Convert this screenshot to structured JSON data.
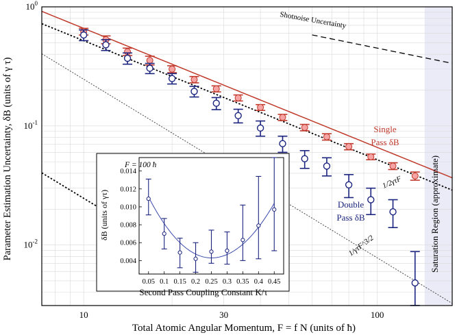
{
  "chart_data": [
    {
      "type": "scatter",
      "xlabel": "Total Atomic Angular Momentum, F = f N  (units of ħ)",
      "ylabel": "Parameter Estimation Uncertainty, δB (units of γ τ)",
      "xscale": "log",
      "yscale": "log",
      "xlim": [
        7.2,
        180
      ],
      "ylim": [
        0.0031,
        1.0
      ],
      "grid": true,
      "x_tick_labels": [
        "10",
        "30",
        "100"
      ],
      "x_tick_values": [
        10,
        30,
        100
      ],
      "y_tick_labels": [
        "10^0",
        "10^-1",
        "10^-2"
      ],
      "y_tick_values": [
        1.0,
        0.1,
        0.01
      ],
      "series": [
        {
          "name": "Single Pass δB",
          "color": "#c0392b",
          "marker": "filled-circle",
          "x": [
            10.0,
            11.9,
            14.1,
            16.8,
            20.0,
            23.8,
            28.3,
            33.6,
            40.0,
            47.6,
            56.6,
            67.3,
            80.0,
            95.1,
            113.1,
            134.5
          ],
          "y": [
            0.62,
            0.53,
            0.42,
            0.355,
            0.3,
            0.245,
            0.205,
            0.172,
            0.143,
            0.118,
            0.097,
            0.081,
            0.067,
            0.055,
            0.046,
            0.038
          ],
          "err": [
            0.04,
            0.04,
            0.03,
            0.03,
            0.02,
            0.015,
            0.012,
            0.01,
            0.008,
            0.007,
            0.006,
            0.005,
            0.004,
            0.003,
            0.003,
            0.003
          ]
        },
        {
          "name": "Double Pass δB",
          "color": "#1a237e",
          "marker": "open-circle",
          "x": [
            10.0,
            11.9,
            14.1,
            16.8,
            20.0,
            23.8,
            28.3,
            33.6,
            40.0,
            47.6,
            56.6,
            67.3,
            80.0,
            95.1,
            113.1,
            134.5
          ],
          "y": [
            0.58,
            0.48,
            0.37,
            0.305,
            0.25,
            0.195,
            0.155,
            0.122,
            0.096,
            0.071,
            0.053,
            0.046,
            0.032,
            0.024,
            0.019,
            0.0048
          ],
          "err": [
            0.06,
            0.05,
            0.04,
            0.03,
            0.025,
            0.02,
            0.018,
            0.016,
            0.014,
            0.011,
            0.009,
            0.008,
            0.007,
            0.006,
            0.005,
            0.004
          ]
        }
      ],
      "reference_lines": [
        {
          "label": "Shotnoise Uncertainty",
          "style": "dashed",
          "color": "#000000",
          "formula": "2/sqrt(F)"
        },
        {
          "label": "1/2γτF",
          "style": "dotted",
          "color": "#000000",
          "formula": "1/(2F) scaled"
        },
        {
          "label": "1/γτF^3/2",
          "style": "dotted-thin",
          "color": "#000000",
          "formula": "F^-3/2"
        }
      ],
      "fit_line": {
        "series": "Single Pass δB",
        "color": "#c0392b",
        "formula": "~ 6.9/F"
      },
      "shaded_region": {
        "label": "Saturation Region (approximate)",
        "x_from": 145,
        "x_to": 180,
        "color": "#ebebf7"
      },
      "annotations": [
        "Single",
        "Pass δB",
        "Double",
        "Pass δB",
        "1/2γτF",
        "1/γτF^3/2",
        "Shotnoise Uncertainty",
        "Saturation Region (approximate)"
      ]
    },
    {
      "type": "scatter",
      "title": "F = 100 ħ",
      "xlabel": "Second Pass Coupling Constant K/τ",
      "ylabel": "δB (units of γτ)",
      "xlim": [
        0.02,
        0.48
      ],
      "ylim": [
        0.0025,
        0.0155
      ],
      "x_tick_labels": [
        "0.05",
        "0.1",
        "0.15",
        "0.2",
        "0.25",
        "0.3",
        "0.35",
        "0.4",
        "0.45"
      ],
      "x_tick_values": [
        0.05,
        0.1,
        0.15,
        0.2,
        0.25,
        0.3,
        0.35,
        0.4,
        0.45
      ],
      "y_tick_labels": [
        "0.004",
        "0.006",
        "0.008",
        "0.010",
        "0.012",
        "0.014"
      ],
      "y_tick_values": [
        0.004,
        0.006,
        0.008,
        0.01,
        0.012,
        0.014
      ],
      "series": [
        {
          "name": "",
          "color": "#1a237e",
          "marker": "open-circle",
          "x": [
            0.05,
            0.1,
            0.15,
            0.2,
            0.25,
            0.3,
            0.35,
            0.4,
            0.45
          ],
          "y": [
            0.0109,
            0.007,
            0.0049,
            0.0042,
            0.005,
            0.0051,
            0.0063,
            0.0079,
            0.0097
          ],
          "err_low": [
            0.0018,
            0.0017,
            0.0017,
            0.0015,
            0.0013,
            0.0015,
            0.0023,
            0.0037,
            0.0046
          ],
          "err_high": [
            0.0022,
            0.0017,
            0.0016,
            0.0018,
            0.0024,
            0.0021,
            0.0039,
            0.0055,
            0.0063
          ]
        }
      ],
      "fit_curve": {
        "type": "quadratic",
        "color": "#3949ab",
        "vertex_x": 0.25,
        "vertex_y": 0.0043,
        "y_at_0.05": 0.0111,
        "y_at_0.45": 0.0104
      }
    }
  ]
}
